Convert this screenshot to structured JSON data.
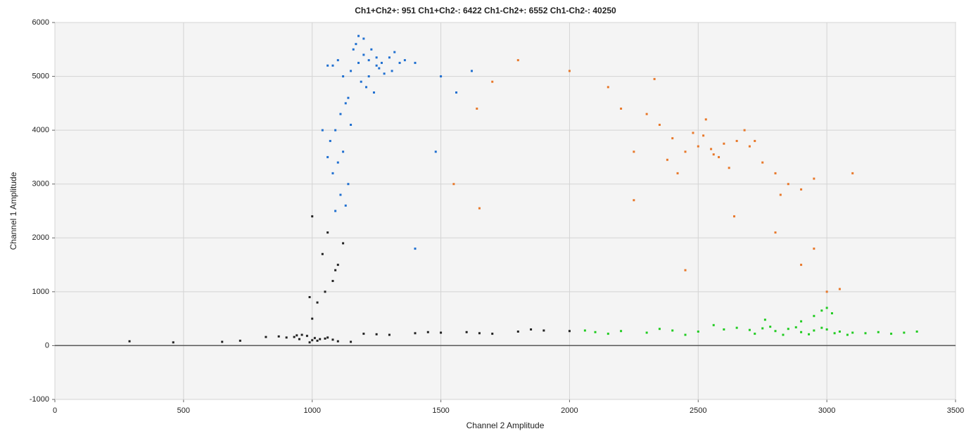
{
  "chart_data": {
    "type": "scatter",
    "title": "Ch1+Ch2+: 951  Ch1+Ch2-: 6422  Ch1-Ch2+: 6552  Ch1-Ch2-: 40250",
    "x_label": "Channel 2 Amplitude",
    "y_label": "Channel 1 Amplitude",
    "xlim": [
      0,
      3500
    ],
    "xticks": [
      0,
      500,
      1000,
      1500,
      2000,
      2500,
      3000,
      3500
    ],
    "ylim": [
      -1000,
      6000
    ],
    "yticks": [
      -1000,
      0,
      1000,
      2000,
      3000,
      4000,
      5000,
      6000
    ],
    "grid": true,
    "series": [
      {
        "color": "#222222",
        "x": [
          900,
          950,
          1000,
          1050,
          980,
          930,
          1020,
          1080,
          960,
          1010,
          870,
          1100,
          990,
          940,
          1060,
          1030,
          820,
          1150,
          1200,
          1300,
          1400,
          1500,
          1600,
          1700,
          1800,
          1900,
          2000,
          1250,
          1450,
          1650,
          1850,
          1000,
          1020,
          1050,
          1080,
          1100,
          1040,
          1120,
          1060,
          1000,
          1090,
          990,
          290,
          460,
          650,
          720
        ],
        "values": [
          150,
          120,
          100,
          130,
          180,
          160,
          90,
          110,
          200,
          140,
          170,
          80,
          60,
          190,
          150,
          120,
          160,
          70,
          220,
          200,
          230,
          240,
          250,
          220,
          260,
          280,
          270,
          210,
          250,
          230,
          300,
          500,
          800,
          1000,
          1200,
          1500,
          1700,
          1900,
          2100,
          2400,
          1400,
          900,
          80,
          60,
          70,
          90
        ]
      },
      {
        "color": "#1f6fd0",
        "x": [
          1180,
          1220,
          1250,
          1150,
          1300,
          1200,
          1260,
          1120,
          1340,
          1190,
          1230,
          1170,
          1280,
          1210,
          1100,
          1320,
          1240,
          1160,
          1270,
          1080,
          1360,
          1140,
          1200,
          1250,
          1130,
          1310,
          1180,
          1220,
          1060,
          1400,
          1110,
          1090,
          1150,
          1070,
          1120,
          1100,
          1080,
          1140,
          1110,
          1060,
          1130,
          1090,
          1500,
          1620,
          1480,
          1400,
          1040,
          1560
        ],
        "values": [
          5250,
          5300,
          5200,
          5100,
          5350,
          5400,
          5150,
          5000,
          5250,
          4900,
          5500,
          5600,
          5050,
          4800,
          5300,
          5450,
          4700,
          5500,
          5250,
          5200,
          5300,
          4600,
          5700,
          5350,
          4500,
          5100,
          5750,
          5000,
          5200,
          5250,
          4300,
          4000,
          4100,
          3800,
          3600,
          3400,
          3200,
          3000,
          2800,
          3500,
          2600,
          2500,
          5000,
          5100,
          3600,
          1800,
          4000,
          4700
        ]
      },
      {
        "color": "#22cc22",
        "x": [
          2100,
          2200,
          2300,
          2400,
          2500,
          2600,
          2700,
          2750,
          2800,
          2850,
          2900,
          2950,
          3000,
          3050,
          3100,
          3150,
          3200,
          3250,
          3300,
          3350,
          2650,
          2720,
          2780,
          2830,
          2880,
          2930,
          2980,
          3030,
          3080,
          2900,
          2950,
          3000,
          3020,
          2980,
          2760,
          2560,
          2450,
          2350,
          2150,
          2060
        ],
        "values": [
          250,
          270,
          240,
          280,
          260,
          300,
          290,
          320,
          270,
          310,
          250,
          280,
          300,
          260,
          240,
          230,
          250,
          220,
          240,
          260,
          330,
          220,
          350,
          200,
          340,
          210,
          330,
          230,
          200,
          450,
          550,
          700,
          600,
          650,
          480,
          380,
          200,
          310,
          220,
          280
        ]
      },
      {
        "color": "#e8782a",
        "x": [
          2500,
          2550,
          2600,
          2450,
          2650,
          2520,
          2580,
          2700,
          2400,
          2350,
          2300,
          2750,
          2800,
          2850,
          2900,
          2250,
          2620,
          2480,
          2680,
          2560,
          2200,
          2950,
          2380,
          2720,
          2530,
          2820,
          2420,
          2640,
          1700,
          1800,
          2000,
          1550,
          1650,
          2950,
          3000,
          3050,
          2450,
          2800,
          2900,
          3100,
          1640,
          2330,
          2150,
          2250
        ],
        "values": [
          3700,
          3650,
          3750,
          3600,
          3800,
          3900,
          3500,
          3700,
          3850,
          4100,
          4300,
          3400,
          3200,
          3000,
          2900,
          3600,
          3300,
          3950,
          4000,
          3550,
          4400,
          3100,
          3450,
          3800,
          4200,
          2800,
          3200,
          2400,
          4900,
          5300,
          5100,
          3000,
          2550,
          1800,
          1000,
          1050,
          1400,
          2100,
          1500,
          3200,
          4400,
          4950,
          4800,
          2700
        ]
      }
    ]
  }
}
